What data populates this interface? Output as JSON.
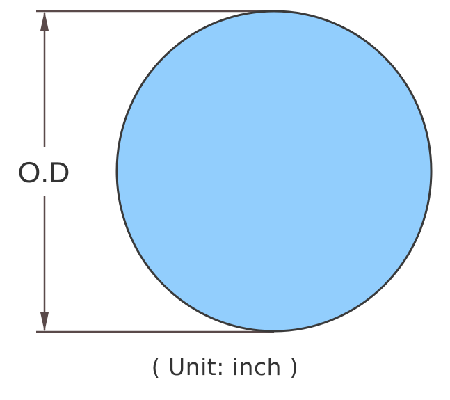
{
  "diagram": {
    "dimension_label": "O.D",
    "unit_caption": "( Unit: inch )",
    "colors": {
      "circle_fill": "#92CEFD",
      "outline": "#3a3a3a",
      "dimension_line": "#5a4a4a",
      "text": "#333333"
    }
  }
}
